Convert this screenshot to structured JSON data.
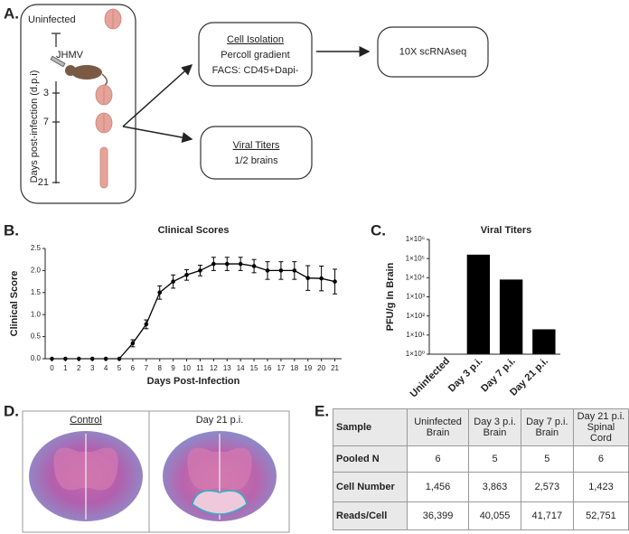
{
  "panel_labels": [
    "A.",
    "B.",
    "C.",
    "D.",
    "E."
  ],
  "workflow": {
    "uninfected": "Uninfected",
    "virus": "JHMV",
    "axis_label": "Days post-infection (d.p.i)",
    "days": [
      3,
      7,
      21
    ],
    "boxes": [
      {
        "title": "Cell Isolation",
        "lines": [
          "Percoll gradient",
          "FACS: CD45+Dapi-"
        ]
      },
      {
        "title": "10X scRNAseq"
      },
      {
        "title": "Viral Titers",
        "lines": [
          "1/2 brains"
        ]
      }
    ]
  },
  "chart_data": [
    {
      "type": "line",
      "title": "Clinical Scores",
      "x_label": "Days Post-Infection",
      "y_label": "Clinical Score",
      "x": [
        0,
        1,
        2,
        3,
        4,
        5,
        6,
        7,
        8,
        9,
        10,
        11,
        12,
        13,
        14,
        15,
        16,
        17,
        18,
        19,
        20,
        21
      ],
      "series": [
        {
          "color": "#000000",
          "values": [
            0,
            0,
            0,
            0,
            0,
            0,
            0.35,
            0.78,
            1.5,
            1.75,
            1.9,
            2.0,
            2.15,
            2.15,
            2.15,
            2.1,
            2.0,
            2.0,
            2.0,
            1.83,
            1.82,
            1.75
          ],
          "errors": [
            0,
            0,
            0,
            0,
            0,
            0,
            0.08,
            0.1,
            0.15,
            0.15,
            0.12,
            0.12,
            0.15,
            0.15,
            0.15,
            0.15,
            0.2,
            0.2,
            0.2,
            0.28,
            0.28,
            0.28
          ]
        }
      ],
      "xlim": [
        -0.5,
        21.5
      ],
      "ylim": [
        0,
        2.5
      ],
      "xticks": [
        0,
        1,
        2,
        3,
        4,
        5,
        6,
        7,
        8,
        9,
        10,
        11,
        12,
        13,
        14,
        15,
        16,
        17,
        18,
        19,
        20,
        21
      ],
      "yticks": [
        {
          "value": 0,
          "label": "0.0"
        },
        0.5,
        {
          "value": 1,
          "label": "1.0"
        },
        1.5,
        {
          "value": 2,
          "label": "2.0"
        },
        2.5
      ]
    },
    {
      "type": "bar",
      "title": "Viral Titers",
      "y_label": "PFU/g In Brain",
      "log_scale": true,
      "color": "#000000",
      "categories": [
        "Uninfected",
        "Day 3 p.i.",
        "Day 7 p.i.",
        "Day 21 p.i."
      ],
      "values": [
        null,
        160000,
        8000,
        20
      ],
      "ylim": [
        1,
        1000000
      ],
      "yticks": [
        {
          "value": 1,
          "label": "1×10⁰"
        },
        {
          "value": 10,
          "label": "1×10¹"
        },
        {
          "value": 100,
          "label": "1×10²"
        },
        {
          "value": 1000,
          "label": "1×10³"
        },
        {
          "value": 10000,
          "label": "1×10⁴"
        },
        {
          "value": 100000,
          "label": "1×10⁵"
        },
        {
          "value": 1000000,
          "label": "1×10⁶"
        }
      ]
    }
  ],
  "histology": {
    "panels": [
      "Control",
      "Day 21 p.i."
    ]
  },
  "table": {
    "header": [
      "Sample",
      "Uninfected\nBrain",
      "Day 3 p.i.\nBrain",
      "Day 7 p.i.\nBrain",
      "Day 21 p.i.\nSpinal Cord"
    ],
    "rows": [
      [
        "Pooled N",
        6,
        5,
        5,
        6
      ],
      [
        "Cell Number",
        "1,456",
        "3,863",
        "2,573",
        "1,423"
      ],
      [
        "Reads/Cell",
        "36,399",
        "40,055",
        "41,717",
        "52,751"
      ]
    ]
  }
}
